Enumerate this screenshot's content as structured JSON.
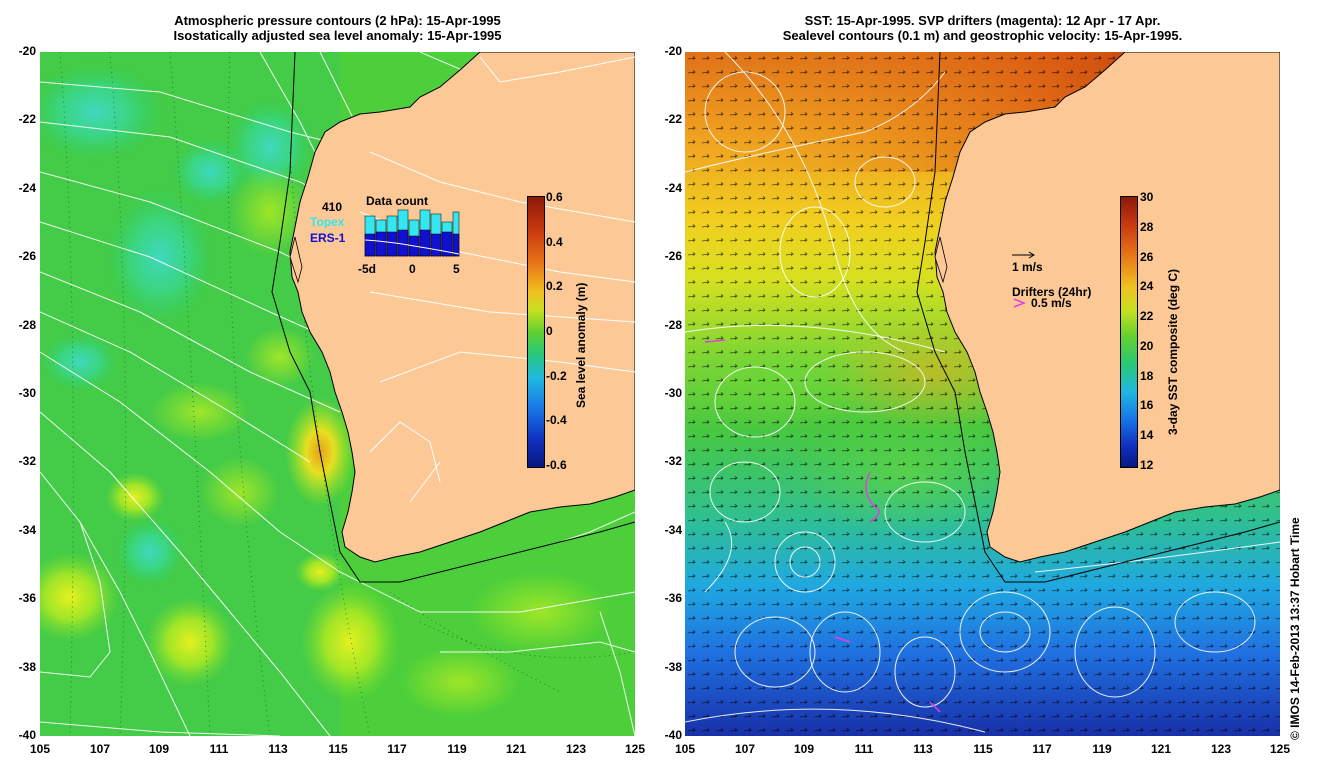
{
  "left_panel": {
    "title_line1": "Atmospheric pressure contours (2 hPa): 15-Apr-1995",
    "title_line2": "Isostatically adjusted sea level anomaly: 15-Apr-1995",
    "y_ticks": [
      "-20",
      "-22",
      "-24",
      "-26",
      "-28",
      "-30",
      "-32",
      "-34",
      "-36",
      "-38",
      "-40"
    ],
    "x_ticks": [
      "105",
      "107",
      "109",
      "111",
      "113",
      "115",
      "117",
      "119",
      "121",
      "123",
      "125"
    ],
    "colorbar": {
      "ticks": [
        "0.6",
        "0.4",
        "0.2",
        "0",
        "-0.2",
        "-0.4",
        "-0.6"
      ],
      "label": "Sea level anomaly (m)"
    },
    "data_count": {
      "title": "Data count",
      "total": "410",
      "topex_label": "Topex",
      "ers_label": "ERS-1",
      "axis_labels": [
        "-5d",
        "0",
        "5"
      ],
      "topex_color": "#33e6f0",
      "ers_color": "#1010d0"
    }
  },
  "right_panel": {
    "title_line1": "SST: 15-Apr-1995. SVP drifters (magenta): 12 Apr - 17 Apr.",
    "title_line2": "Sealevel contours (0.1 m) and geostrophic velocity: 15-Apr-1995.",
    "y_ticks": [
      "-20",
      "-22",
      "-24",
      "-26",
      "-28",
      "-30",
      "-32",
      "-34",
      "-36",
      "-38",
      "-40"
    ],
    "x_ticks": [
      "105",
      "107",
      "109",
      "111",
      "113",
      "115",
      "117",
      "119",
      "121",
      "123",
      "125"
    ],
    "colorbar": {
      "ticks": [
        "30",
        "28",
        "26",
        "24",
        "22",
        "20",
        "18",
        "16",
        "14",
        "12"
      ],
      "label": "3-day SST composite (deg C)"
    },
    "velocity_scale_label": "1 m/s",
    "drifters_label": "Drifters (24hr)",
    "drifter_scale_label": "0.5 m/s",
    "drifter_color": "#e040e0"
  },
  "credit": "© IMOS 14-Feb-2013 13:37 Hobart Time",
  "land_color": "#fbc896"
}
